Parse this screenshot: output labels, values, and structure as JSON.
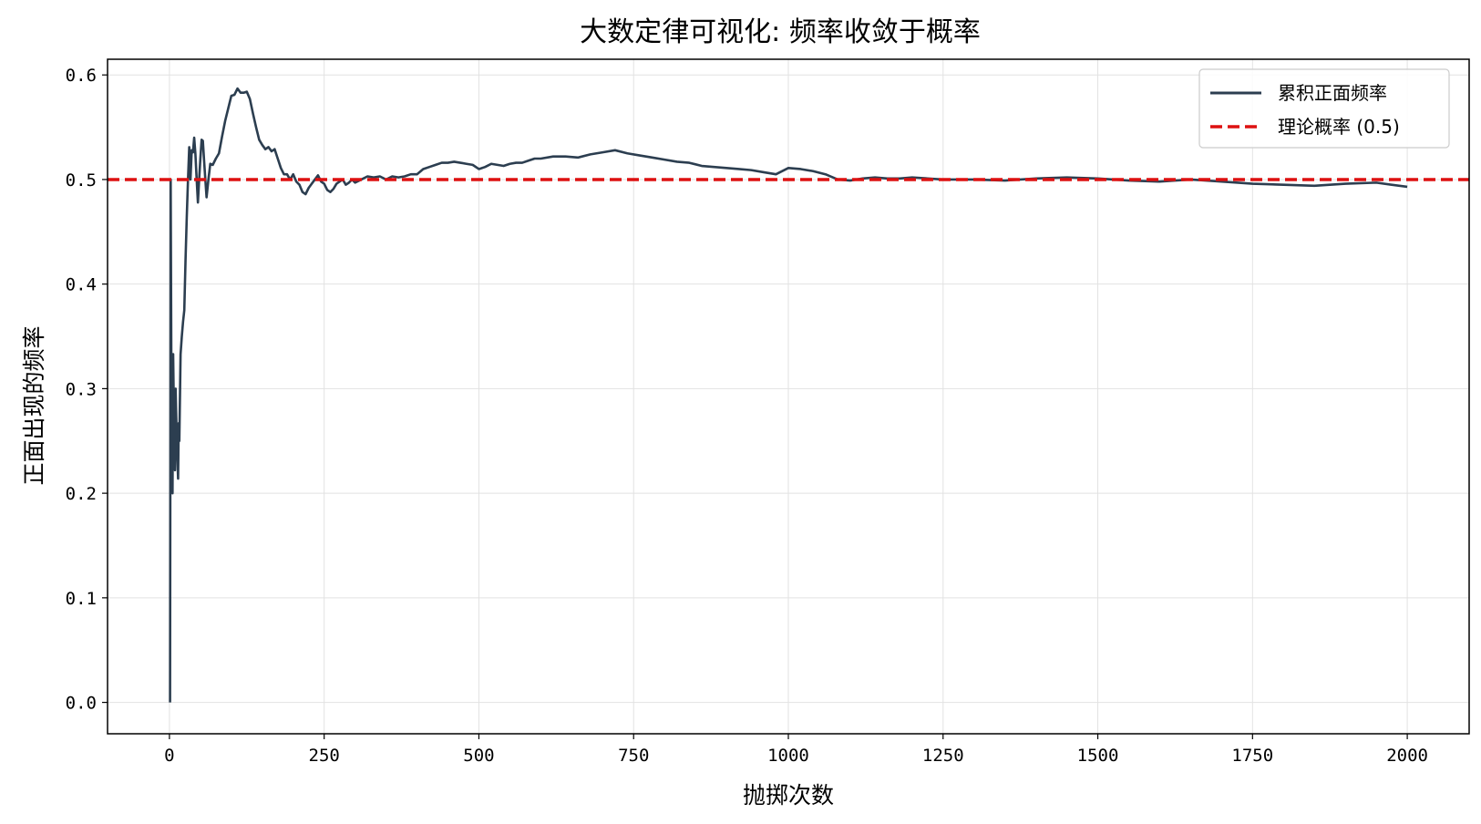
{
  "chart_data": {
    "type": "line",
    "title": "大数定律可视化: 频率收敛于概率",
    "xlabel": "抛掷次数",
    "ylabel": "正面出现的频率",
    "xlim": [
      -100,
      2100
    ],
    "ylim": [
      -0.03,
      0.615
    ],
    "xticks": [
      0,
      250,
      500,
      750,
      1000,
      1250,
      1500,
      1750,
      2000
    ],
    "xtick_labels": [
      "0",
      "250",
      "500",
      "750",
      "1000",
      "1250",
      "1500",
      "1750",
      "2000"
    ],
    "yticks": [
      0.0,
      0.1,
      0.2,
      0.3,
      0.4,
      0.5,
      0.6
    ],
    "ytick_labels": [
      "0.0",
      "0.1",
      "0.2",
      "0.3",
      "0.4",
      "0.5",
      "0.6"
    ],
    "grid": true,
    "legend_position": "top-right",
    "series": [
      {
        "name": "累积正面频率",
        "color": "#2c3e50",
        "style": "solid",
        "x": [
          1,
          2,
          3,
          4,
          5,
          6,
          7,
          8,
          9,
          10,
          11,
          12,
          13,
          14,
          15,
          16,
          18,
          20,
          22,
          24,
          26,
          28,
          30,
          32,
          34,
          36,
          38,
          40,
          42,
          44,
          46,
          48,
          50,
          52,
          54,
          56,
          58,
          60,
          63,
          66,
          70,
          75,
          80,
          85,
          90,
          95,
          100,
          105,
          110,
          115,
          120,
          125,
          130,
          135,
          140,
          145,
          150,
          155,
          160,
          165,
          170,
          175,
          180,
          185,
          190,
          195,
          200,
          205,
          210,
          215,
          220,
          225,
          230,
          235,
          240,
          245,
          250,
          255,
          260,
          265,
          270,
          275,
          280,
          285,
          290,
          295,
          300,
          310,
          320,
          330,
          340,
          350,
          360,
          370,
          380,
          390,
          400,
          410,
          420,
          430,
          440,
          450,
          460,
          470,
          480,
          490,
          500,
          510,
          520,
          530,
          540,
          550,
          560,
          570,
          580,
          590,
          600,
          620,
          640,
          660,
          680,
          700,
          720,
          740,
          760,
          780,
          800,
          820,
          840,
          860,
          880,
          900,
          920,
          940,
          960,
          980,
          1000,
          1020,
          1040,
          1060,
          1080,
          1100,
          1120,
          1140,
          1160,
          1180,
          1200,
          1250,
          1300,
          1350,
          1400,
          1450,
          1500,
          1550,
          1600,
          1650,
          1700,
          1750,
          1800,
          1850,
          1900,
          1950,
          2000
        ],
        "y": [
          0.0,
          0.5,
          0.333,
          0.25,
          0.2,
          0.333,
          0.286,
          0.25,
          0.222,
          0.3,
          0.273,
          0.25,
          0.231,
          0.214,
          0.267,
          0.25,
          0.333,
          0.35,
          0.364,
          0.375,
          0.423,
          0.464,
          0.5,
          0.531,
          0.5,
          0.528,
          0.526,
          0.54,
          0.524,
          0.5,
          0.478,
          0.5,
          0.52,
          0.538,
          0.537,
          0.518,
          0.5,
          0.483,
          0.5,
          0.515,
          0.514,
          0.52,
          0.525,
          0.541,
          0.556,
          0.568,
          0.58,
          0.581,
          0.587,
          0.583,
          0.583,
          0.584,
          0.577,
          0.563,
          0.55,
          0.538,
          0.533,
          0.529,
          0.531,
          0.527,
          0.529,
          0.52,
          0.511,
          0.505,
          0.505,
          0.5,
          0.505,
          0.498,
          0.495,
          0.488,
          0.486,
          0.492,
          0.496,
          0.5,
          0.504,
          0.498,
          0.496,
          0.49,
          0.488,
          0.491,
          0.496,
          0.498,
          0.5,
          0.495,
          0.497,
          0.5,
          0.497,
          0.5,
          0.503,
          0.502,
          0.503,
          0.5,
          0.503,
          0.502,
          0.503,
          0.505,
          0.505,
          0.51,
          0.512,
          0.514,
          0.516,
          0.516,
          0.517,
          0.516,
          0.515,
          0.514,
          0.51,
          0.512,
          0.515,
          0.514,
          0.513,
          0.515,
          0.516,
          0.516,
          0.518,
          0.52,
          0.52,
          0.522,
          0.522,
          0.521,
          0.524,
          0.526,
          0.528,
          0.525,
          0.523,
          0.521,
          0.519,
          0.517,
          0.516,
          0.513,
          0.512,
          0.511,
          0.51,
          0.509,
          0.507,
          0.505,
          0.511,
          0.51,
          0.508,
          0.505,
          0.5,
          0.499,
          0.501,
          0.502,
          0.501,
          0.501,
          0.502,
          0.5,
          0.5,
          0.499,
          0.501,
          0.502,
          0.501,
          0.499,
          0.498,
          0.5,
          0.498,
          0.496,
          0.495,
          0.494,
          0.496,
          0.497,
          0.493
        ]
      },
      {
        "name": "理论概率 (0.5)",
        "color": "#dd1111",
        "style": "dashed",
        "y_constant": 0.5
      }
    ]
  }
}
